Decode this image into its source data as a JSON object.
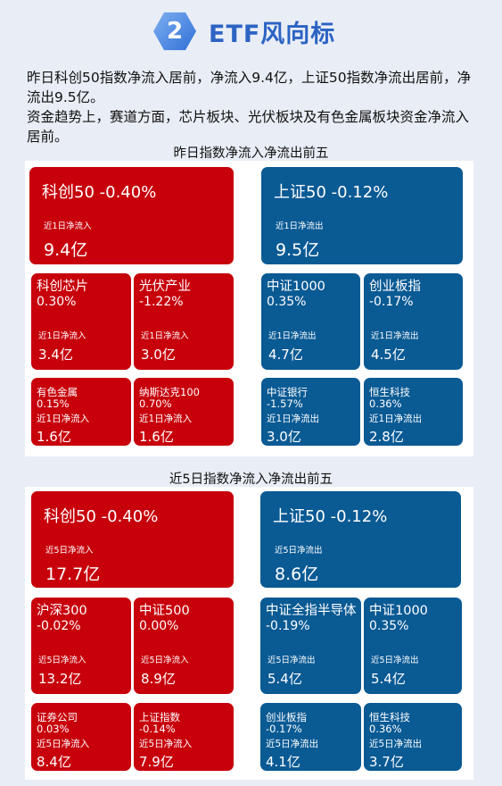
{
  "header": {
    "badge_number": "2",
    "title": "ETF风向标"
  },
  "intro": {
    "line1": "昨日科创50指数净流入居前，净流入9.4亿，上证50指数净流出居前，净流出9.5亿。",
    "line2": "资金趋势上，赛道方面，芯片板块、光伏板块及有色金属板块资金净流入居前。"
  },
  "colors": {
    "inflow": "#c7000b",
    "outflow": "#0a5a94",
    "accent": "#2c63c4"
  },
  "section1": {
    "title": "昨日指数净流入净流出前五",
    "in_big": {
      "name": "科创50 -0.40%",
      "label": "近1日净流入",
      "value": "9.4亿"
    },
    "out_big": {
      "name": "上证50 -0.12%",
      "label": "近1日净流出",
      "value": "9.5亿"
    },
    "in_mid": [
      {
        "name": "科创芯片",
        "change": "0.30%",
        "label": "近1日净流入",
        "value": "3.4亿"
      },
      {
        "name": "光伏产业",
        "change": "-1.22%",
        "label": "近1日净流入",
        "value": "3.0亿"
      }
    ],
    "out_mid": [
      {
        "name": "中证1000",
        "change": "0.35%",
        "label": "近1日净流出",
        "value": "4.7亿"
      },
      {
        "name": "创业板指",
        "change": "-0.17%",
        "label": "近1日净流出",
        "value": "4.5亿"
      }
    ],
    "in_small": [
      {
        "name": "有色金属",
        "change": "0.15%",
        "label": "近1日净流入",
        "value": "1.6亿"
      },
      {
        "name": "纳斯达克100",
        "change": "0.70%",
        "label": "近1日净流入",
        "value": "1.6亿"
      }
    ],
    "out_small": [
      {
        "name": "中证银行",
        "change": "-1.57%",
        "label": "近1日净流出",
        "value": "3.0亿"
      },
      {
        "name": "恒生科技",
        "change": "0.36%",
        "label": "近1日净流出",
        "value": "2.8亿"
      }
    ]
  },
  "section2": {
    "title": "近5日指数净流入净流出前五",
    "in_big": {
      "name": "科创50 -0.40%",
      "label": "近5日净流入",
      "value": "17.7亿"
    },
    "out_big": {
      "name": "上证50 -0.12%",
      "label": "近5日净流出",
      "value": "8.6亿"
    },
    "in_mid": [
      {
        "name": "沪深300",
        "change": "-0.02%",
        "label": "近5日净流入",
        "value": "13.2亿"
      },
      {
        "name": "中证500",
        "change": "0.00%",
        "label": "近5日净流入",
        "value": "8.9亿"
      }
    ],
    "out_mid": [
      {
        "name": "中证全指半导体",
        "change": "-0.19%",
        "label": "近5日净流出",
        "value": "5.4亿"
      },
      {
        "name": "中证1000",
        "change": "0.35%",
        "label": "近5日净流出",
        "value": "5.4亿"
      }
    ],
    "in_small": [
      {
        "name": "证券公司",
        "change": "0.03%",
        "label": "近5日净流入",
        "value": "8.4亿"
      },
      {
        "name": "上证指数",
        "change": "-0.14%",
        "label": "近5日净流入",
        "value": "7.9亿"
      }
    ],
    "out_small": [
      {
        "name": "创业板指",
        "change": "-0.17%",
        "label": "近5日净流出",
        "value": "4.1亿"
      },
      {
        "name": "恒生科技",
        "change": "0.36%",
        "label": "近5日净流出",
        "value": "3.7亿"
      }
    ]
  }
}
